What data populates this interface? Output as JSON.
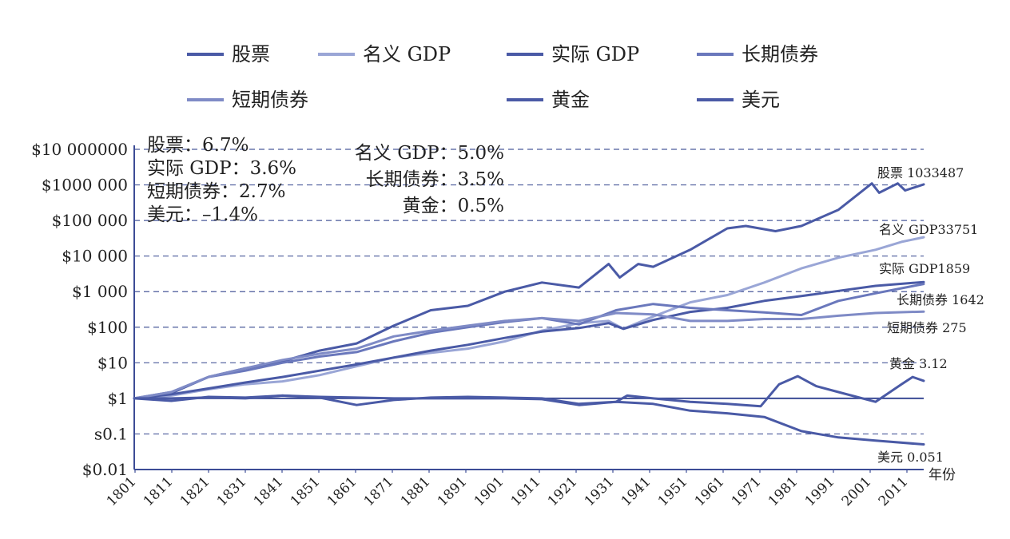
{
  "chart_data": {
    "type": "line",
    "title": "",
    "xlabel": "年份",
    "ylabel": "",
    "y_scale": "log",
    "ylim": [
      0.01,
      10000000
    ],
    "y_ticks": [
      {
        "value": 10000000,
        "label": "$10 000000"
      },
      {
        "value": 1000000,
        "label": "$1000 000"
      },
      {
        "value": 100000,
        "label": "$100 000"
      },
      {
        "value": 10000,
        "label": "$10 000"
      },
      {
        "value": 1000,
        "label": "$1 000"
      },
      {
        "value": 100,
        "label": "$100"
      },
      {
        "value": 10,
        "label": "$10"
      },
      {
        "value": 1,
        "label": "$1"
      },
      {
        "value": 0.1,
        "label": "s0.1"
      },
      {
        "value": 0.01,
        "label": "$0.01"
      }
    ],
    "x_ticks": [
      "1801",
      "1811",
      "1821",
      "1831",
      "1841",
      "1851",
      "1861",
      "1871",
      "1881",
      "1891",
      "1901",
      "1911",
      "1921",
      "1931",
      "1941",
      "1951",
      "1961",
      "1971",
      "1981",
      "1991",
      "2001",
      "2011"
    ],
    "xlim": [
      1801,
      2014
    ],
    "legend": {
      "position": "top",
      "items": [
        "股票",
        "名义 GDP",
        "实际 GDP",
        "长期债券",
        "短期债券",
        "黄金",
        "美元"
      ]
    },
    "rate_labels_left": [
      "股票：6.7%",
      "实际 GDP：3.6%",
      "短期债券：2.7%",
      "美元：–1.4%"
    ],
    "rate_labels_right": [
      "名义 GDP：5.0%",
      "长期债券：3.5%",
      "黄金：0.5%"
    ],
    "series": [
      {
        "name": "股票",
        "color": "#4a5aa6",
        "end_label": "股票 1033487",
        "points": [
          [
            1801,
            1
          ],
          [
            1811,
            1.4
          ],
          [
            1821,
            4
          ],
          [
            1831,
            7
          ],
          [
            1841,
            11
          ],
          [
            1851,
            22
          ],
          [
            1861,
            35
          ],
          [
            1871,
            110
          ],
          [
            1881,
            300
          ],
          [
            1891,
            400
          ],
          [
            1901,
            1000
          ],
          [
            1911,
            1800
          ],
          [
            1921,
            1300
          ],
          [
            1929,
            6000
          ],
          [
            1932,
            2500
          ],
          [
            1937,
            6000
          ],
          [
            1941,
            5000
          ],
          [
            1951,
            15000
          ],
          [
            1961,
            60000
          ],
          [
            1966,
            70000
          ],
          [
            1974,
            50000
          ],
          [
            1981,
            70000
          ],
          [
            1991,
            200000
          ],
          [
            2000,
            1100000
          ],
          [
            2002,
            600000
          ],
          [
            2007,
            1100000
          ],
          [
            2009,
            700000
          ],
          [
            2014,
            1033487
          ]
        ]
      },
      {
        "name": "名义 GDP",
        "color": "#9aa6d6",
        "end_label": "名义 GDP33751",
        "points": [
          [
            1801,
            1
          ],
          [
            1811,
            1.2
          ],
          [
            1821,
            1.8
          ],
          [
            1831,
            2.5
          ],
          [
            1841,
            3
          ],
          [
            1851,
            4.5
          ],
          [
            1861,
            8
          ],
          [
            1871,
            14
          ],
          [
            1881,
            19
          ],
          [
            1891,
            25
          ],
          [
            1901,
            40
          ],
          [
            1911,
            80
          ],
          [
            1921,
            130
          ],
          [
            1929,
            150
          ],
          [
            1933,
            90
          ],
          [
            1941,
            200
          ],
          [
            1951,
            500
          ],
          [
            1961,
            800
          ],
          [
            1971,
            1800
          ],
          [
            1981,
            4500
          ],
          [
            1991,
            9000
          ],
          [
            2001,
            15000
          ],
          [
            2008,
            25000
          ],
          [
            2014,
            33751
          ]
        ]
      },
      {
        "name": "实际 GDP",
        "color": "#4a5aa6",
        "end_label": "实际 GDP1859",
        "points": [
          [
            1801,
            1
          ],
          [
            1811,
            1.3
          ],
          [
            1821,
            1.9
          ],
          [
            1831,
            2.8
          ],
          [
            1841,
            4
          ],
          [
            1851,
            6
          ],
          [
            1861,
            9
          ],
          [
            1871,
            14
          ],
          [
            1881,
            22
          ],
          [
            1891,
            32
          ],
          [
            1901,
            50
          ],
          [
            1911,
            75
          ],
          [
            1921,
            95
          ],
          [
            1929,
            130
          ],
          [
            1933,
            90
          ],
          [
            1941,
            160
          ],
          [
            1951,
            270
          ],
          [
            1961,
            350
          ],
          [
            1971,
            550
          ],
          [
            1981,
            750
          ],
          [
            1991,
            1050
          ],
          [
            2001,
            1450
          ],
          [
            2014,
            1859
          ]
        ]
      },
      {
        "name": "长期债券",
        "color": "#6a78bc",
        "end_label": "长期债券 1642",
        "points": [
          [
            1801,
            1
          ],
          [
            1811,
            1.5
          ],
          [
            1821,
            4
          ],
          [
            1831,
            6
          ],
          [
            1841,
            10
          ],
          [
            1851,
            15
          ],
          [
            1861,
            20
          ],
          [
            1871,
            40
          ],
          [
            1881,
            70
          ],
          [
            1891,
            100
          ],
          [
            1901,
            140
          ],
          [
            1911,
            180
          ],
          [
            1921,
            120
          ],
          [
            1931,
            300
          ],
          [
            1941,
            450
          ],
          [
            1951,
            350
          ],
          [
            1961,
            300
          ],
          [
            1971,
            260
          ],
          [
            1981,
            220
          ],
          [
            1991,
            550
          ],
          [
            2001,
            900
          ],
          [
            2014,
            1642
          ]
        ]
      },
      {
        "name": "短期债券",
        "color": "#7f8bc6",
        "end_label": "短期债券 275",
        "points": [
          [
            1801,
            1
          ],
          [
            1811,
            1.5
          ],
          [
            1821,
            4
          ],
          [
            1831,
            7
          ],
          [
            1841,
            12
          ],
          [
            1851,
            18
          ],
          [
            1861,
            25
          ],
          [
            1871,
            55
          ],
          [
            1881,
            80
          ],
          [
            1891,
            110
          ],
          [
            1901,
            150
          ],
          [
            1911,
            180
          ],
          [
            1921,
            150
          ],
          [
            1931,
            250
          ],
          [
            1941,
            230
          ],
          [
            1951,
            150
          ],
          [
            1961,
            150
          ],
          [
            1971,
            170
          ],
          [
            1981,
            170
          ],
          [
            1991,
            210
          ],
          [
            2001,
            250
          ],
          [
            2014,
            275
          ]
        ]
      },
      {
        "name": "黄金",
        "color": "#4a5aa6",
        "end_label": "黄金 3.12",
        "points": [
          [
            1801,
            1
          ],
          [
            1811,
            0.85
          ],
          [
            1821,
            1.1
          ],
          [
            1831,
            1.05
          ],
          [
            1841,
            1.2
          ],
          [
            1851,
            1.05
          ],
          [
            1861,
            0.65
          ],
          [
            1871,
            0.9
          ],
          [
            1881,
            1.05
          ],
          [
            1891,
            1.1
          ],
          [
            1901,
            1.05
          ],
          [
            1911,
            1
          ],
          [
            1921,
            0.7
          ],
          [
            1931,
            0.8
          ],
          [
            1934,
            1.2
          ],
          [
            1941,
            1
          ],
          [
            1951,
            0.8
          ],
          [
            1961,
            0.7
          ],
          [
            1970,
            0.6
          ],
          [
            1975,
            2.5
          ],
          [
            1980,
            4.2
          ],
          [
            1985,
            2.2
          ],
          [
            1991,
            1.5
          ],
          [
            2001,
            0.8
          ],
          [
            2008,
            2.5
          ],
          [
            2011,
            4
          ],
          [
            2014,
            3.12
          ]
        ]
      },
      {
        "name": "美元",
        "color": "#4a5aa6",
        "end_label": "美元 0.051",
        "points": [
          [
            1801,
            1
          ],
          [
            1811,
            1
          ],
          [
            1821,
            1.05
          ],
          [
            1831,
            1
          ],
          [
            1841,
            1.2
          ],
          [
            1851,
            1.1
          ],
          [
            1861,
            1.05
          ],
          [
            1871,
            1
          ],
          [
            1881,
            1
          ],
          [
            1891,
            1
          ],
          [
            1901,
            1
          ],
          [
            1911,
            0.95
          ],
          [
            1921,
            0.65
          ],
          [
            1931,
            0.8
          ],
          [
            1941,
            0.7
          ],
          [
            1951,
            0.45
          ],
          [
            1961,
            0.38
          ],
          [
            1971,
            0.3
          ],
          [
            1981,
            0.12
          ],
          [
            1991,
            0.08
          ],
          [
            2001,
            0.065
          ],
          [
            2014,
            0.051
          ]
        ]
      }
    ]
  }
}
